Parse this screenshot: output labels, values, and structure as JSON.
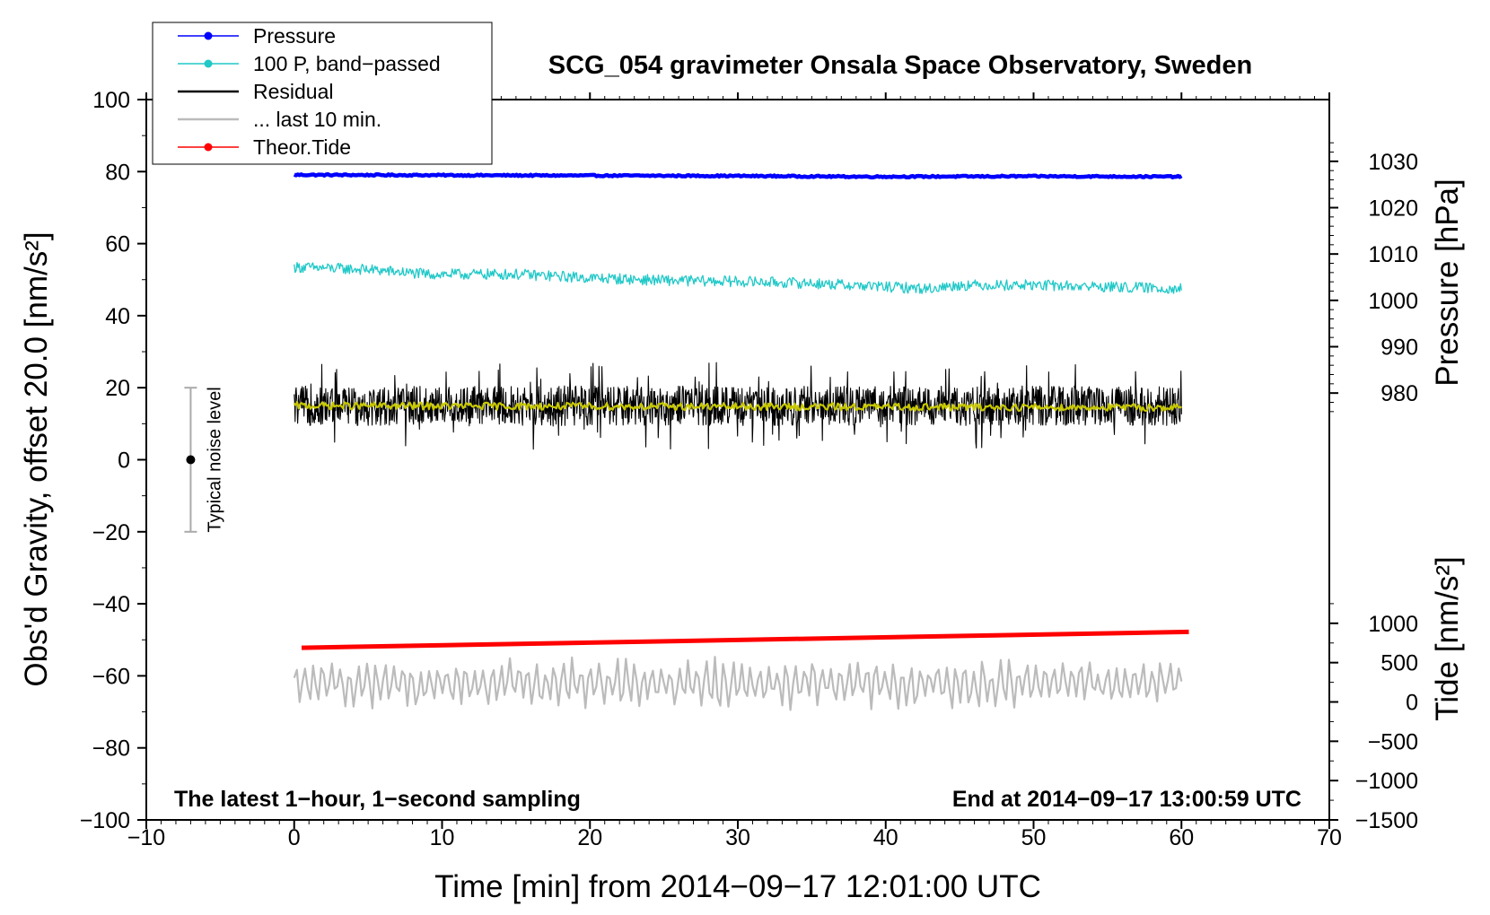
{
  "chart_data": {
    "type": "line",
    "title": "SCG_054 gravimeter Onsala Space Observatory, Sweden",
    "xlabel": "Time [min] from 2014−09−17 12:01:00 UTC",
    "ylabel_left": "Obs'd Gravity, offset 20.0 [nm/s²]",
    "ylabel_pressure": "Pressure [hPa]",
    "ylabel_tide": "Tide [nm/s²]",
    "xlim": [
      -10,
      70
    ],
    "ylim_left": [
      -100,
      100
    ],
    "ylim_pressure": [
      975,
      1035
    ],
    "ylim_tide": [
      -1500,
      1500
    ],
    "x_ticks": [
      -10,
      0,
      10,
      20,
      30,
      40,
      50,
      60,
      70
    ],
    "x_tick_labels": [
      "−10",
      "0",
      "10",
      "20",
      "30",
      "40",
      "50",
      "60",
      "70"
    ],
    "y_left_ticks": [
      -100,
      -80,
      -60,
      -40,
      -20,
      0,
      20,
      40,
      60,
      80,
      100
    ],
    "y_left_tick_labels": [
      "−100",
      "−80",
      "−60",
      "−40",
      "−20",
      "0",
      "20",
      "40",
      "60",
      "80",
      "100"
    ],
    "pressure_ticks": [
      980,
      990,
      1000,
      1010,
      1020,
      1030
    ],
    "pressure_tick_labels": [
      "980",
      "990",
      "1000",
      "1010",
      "1020",
      "1030"
    ],
    "tide_ticks": [
      -1500,
      -1000,
      -500,
      0,
      500,
      1000
    ],
    "tide_tick_labels": [
      "−1500",
      "−1000",
      "−500",
      "0",
      "500",
      "1000"
    ],
    "annotation_left": "The latest 1−hour, 1−second sampling",
    "annotation_right": "End at 2014−09−17 13:00:59 UTC",
    "noise_bar": {
      "x": -7,
      "center": 0,
      "low": -20,
      "high": 20,
      "label": "Typical noise level"
    },
    "legend": [
      {
        "label": "Pressure",
        "color": "#0000ff",
        "marker": true
      },
      {
        "label": "100 P, band−passed",
        "color": "#20c8c8",
        "marker": true
      },
      {
        "label": "Residual",
        "color": "#000000",
        "marker": false
      },
      {
        "label": "... last 10 min.",
        "color": "#bbbbbb",
        "marker": false
      },
      {
        "label": "Theor.Tide",
        "color": "#ff0000",
        "marker": true
      }
    ],
    "series": [
      {
        "name": "Pressure",
        "color": "#0000ff",
        "axis": "left",
        "x": [
          0,
          10,
          20,
          30,
          34,
          38,
          40,
          50,
          60
        ],
        "y": [
          79.1,
          79.0,
          78.9,
          78.8,
          78.7,
          78.6,
          78.6,
          78.7,
          78.6
        ],
        "noise": 0.2
      },
      {
        "name": "100 P, band−passed",
        "color": "#20c8c8",
        "axis": "left",
        "x": [
          0,
          5,
          9,
          10,
          15,
          20,
          25,
          30,
          35,
          40,
          43,
          45,
          50,
          55,
          60
        ],
        "y": [
          53.5,
          52.8,
          51.5,
          51.5,
          51.5,
          50.5,
          49.8,
          49.5,
          49.0,
          48.0,
          47.5,
          48.5,
          48.5,
          48.0,
          47.5
        ],
        "noise": 1.5
      },
      {
        "name": "Residual",
        "color": "#000000",
        "axis": "left",
        "x": [
          0,
          60
        ],
        "y": [
          15,
          15
        ],
        "noise": 5.5
      },
      {
        "name": "Residual smoothed",
        "color": "#c8c800",
        "axis": "left",
        "x": [
          0,
          60
        ],
        "y": [
          15,
          14.5
        ],
        "noise": 1.0
      },
      {
        "name": "... last 10 min.",
        "color": "#bbbbbb",
        "axis": "left",
        "x": [
          0,
          60
        ],
        "y": [
          -62,
          -62
        ],
        "noise": 5.0
      },
      {
        "name": "Theor.Tide",
        "color": "#ff0000",
        "axis": "left",
        "x": [
          0.5,
          60.5
        ],
        "y": [
          -52.2,
          -47.8
        ],
        "noise": 0
      }
    ]
  }
}
